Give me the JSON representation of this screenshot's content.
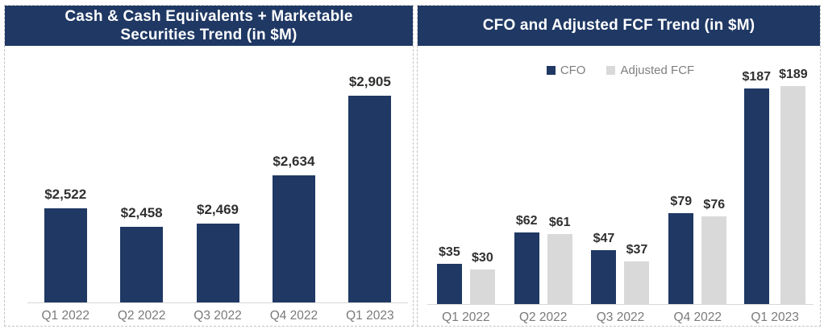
{
  "theme": {
    "header_bg": "#1F3864",
    "header_text": "#FFFFFF",
    "cfo_bar_color": "#1F3864",
    "fcf_bar_color": "#D9D9D9",
    "value_label_color": "#303030",
    "axis_label_color": "#7A7A7A"
  },
  "chart_data": [
    {
      "type": "bar",
      "title": "Cash & Cash Equivalents + Marketable Securities Trend (in $M)",
      "categories": [
        "Q1 2022",
        "Q2 2022",
        "Q3 2022",
        "Q4 2022",
        "Q1 2023"
      ],
      "values": [
        2522,
        2458,
        2469,
        2634,
        2905
      ],
      "labels": [
        "$2,522",
        "$2,458",
        "$2,469",
        "$2,634",
        "$2,905"
      ],
      "bar_color": "#1F3864",
      "xlabel": "",
      "ylabel": "",
      "ylim": [
        2200,
        2905
      ],
      "grid": false,
      "legend": null,
      "data_labels": true
    },
    {
      "type": "bar",
      "title": "CFO and Adjusted FCF Trend (in $M)",
      "categories": [
        "Q1 2022",
        "Q2 2022",
        "Q3 2022",
        "Q4 2022",
        "Q1 2023"
      ],
      "series": [
        {
          "name": "CFO",
          "values": [
            35,
            62,
            47,
            79,
            187
          ],
          "labels": [
            "$35",
            "$62",
            "$47",
            "$79",
            "$187"
          ],
          "color": "#1F3864"
        },
        {
          "name": "Adjusted FCF",
          "values": [
            30,
            61,
            37,
            76,
            189
          ],
          "labels": [
            "$30",
            "$61",
            "$37",
            "$76",
            "$189"
          ],
          "color": "#D9D9D9"
        }
      ],
      "xlabel": "",
      "ylabel": "",
      "ylim": [
        0,
        189
      ],
      "grid": false,
      "legend_position": "top",
      "data_labels": true
    }
  ]
}
